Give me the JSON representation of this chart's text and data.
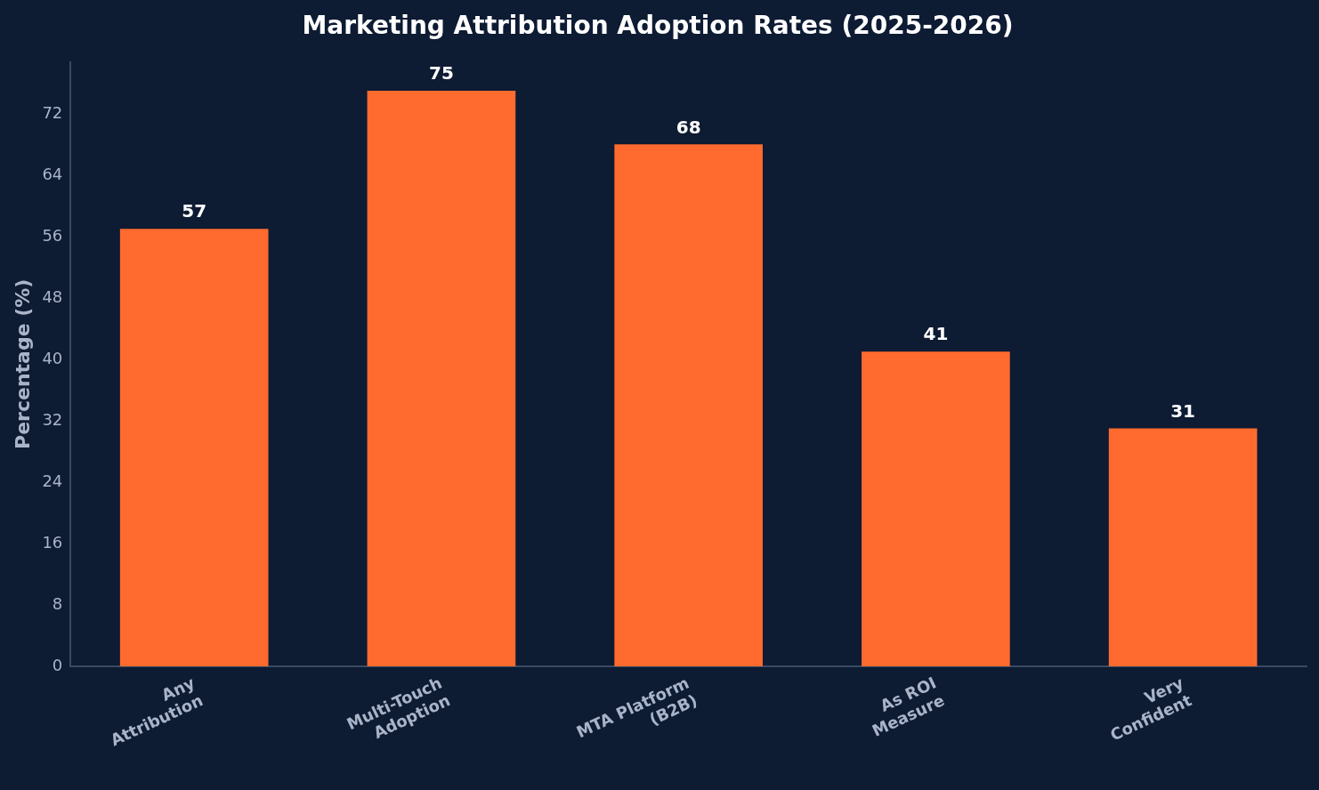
{
  "chart_data": {
    "type": "bar",
    "title": "Marketing Attribution Adoption Rates (2025-2026)",
    "ylabel": "Percentage (%)",
    "categories": [
      "Any\nAttribution",
      "Multi-Touch\nAdoption",
      "MTA Platform\n(B2B)",
      "As ROI\nMeasure",
      "Very\nConfident"
    ],
    "values": [
      57,
      75,
      68,
      41,
      31
    ],
    "color": "#ff6b2f",
    "ylim": [
      0,
      78.75
    ],
    "yticks": [
      0,
      8,
      16,
      24,
      32,
      40,
      48,
      56,
      64,
      72
    ],
    "grid": false,
    "legend": false,
    "data_labels": true
  }
}
